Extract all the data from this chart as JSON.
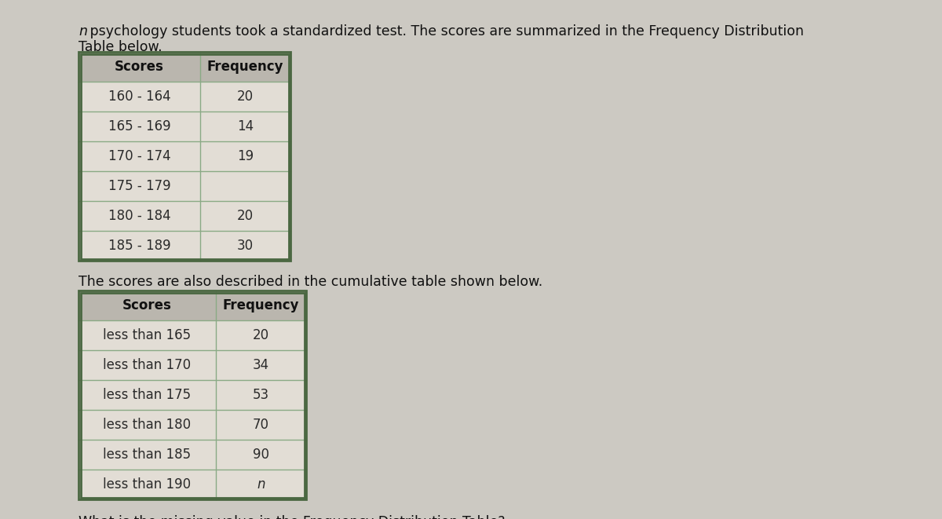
{
  "intro_line1_italic": "n",
  "intro_line1_rest": " psychology students took a standardized test. The scores are summarized in the Frequency Distribution",
  "intro_line2": "Table below.",
  "table1_header": [
    "Scores",
    "Frequency"
  ],
  "table1_rows": [
    [
      "160 - 164",
      "20"
    ],
    [
      "165 - 169",
      "14"
    ],
    [
      "170 - 174",
      "19"
    ],
    [
      "175 - 179",
      ""
    ],
    [
      "180 - 184",
      "20"
    ],
    [
      "185 - 189",
      "30"
    ]
  ],
  "middle_text": "The scores are also described in the cumulative table shown below.",
  "table2_header": [
    "Scores",
    "Frequency"
  ],
  "table2_rows": [
    [
      "less than 165",
      "20"
    ],
    [
      "less than 170",
      "34"
    ],
    [
      "less than 175",
      "53"
    ],
    [
      "less than 180",
      "70"
    ],
    [
      "less than 185",
      "90"
    ],
    [
      "less than 190",
      "n"
    ]
  ],
  "bottom_text": "What is the missing value in the Frequency Distribution Table?",
  "bg_color": "#ccc9c2",
  "table_outer_border_color": "#4a6741",
  "table_inner_border_color": "#8aaa85",
  "table_header_bg": "#bab6ae",
  "table_row_bg": "#e2ddd5",
  "table_text_color": "#2a2a2a",
  "header_text_color": "#111111",
  "text_color": "#111111"
}
